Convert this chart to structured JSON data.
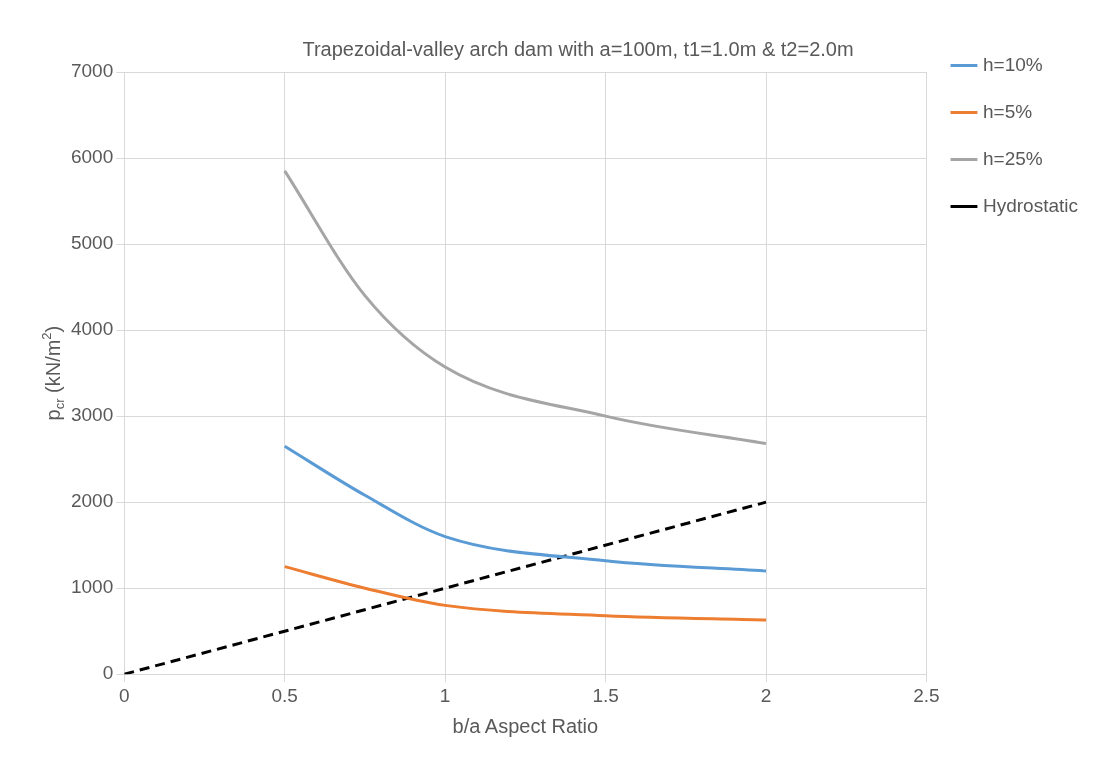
{
  "chart_data": {
    "type": "line",
    "title": "Trapezoidal-valley arch dam with a=100m, t1=1.0m & t2=2.0m",
    "xlabel": "b/a Aspect Ratio",
    "ylabel": "p$_{cr}$ (kN/m$^{2}$)",
    "xlim": [
      0,
      2.5
    ],
    "xticks": [
      0,
      0.5,
      1,
      1.5,
      2,
      2.5
    ],
    "ylim": [
      0,
      7000
    ],
    "yticks": [
      0,
      1000,
      2000,
      3000,
      4000,
      5000,
      6000,
      7000
    ],
    "grid": true,
    "legend": "right",
    "marker": "none",
    "series": [
      {
        "name": "h=10%",
        "color": "#5b9bd5",
        "x": [
          0.5,
          0.75,
          1,
          1.5,
          2
        ],
        "values": [
          2650,
          2080,
          1600,
          1320,
          1200
        ],
        "line_style": "solid"
      },
      {
        "name": "h=5%",
        "color": "#ed7d31",
        "x": [
          0.5,
          0.75,
          1,
          1.5,
          2
        ],
        "values": [
          1250,
          1000,
          800,
          680,
          630
        ],
        "line_style": "solid"
      },
      {
        "name": "h=25%",
        "color": "#a5a5a5",
        "x": [
          0.5,
          0.75,
          1,
          1.5,
          2
        ],
        "values": [
          5850,
          4400,
          3570,
          3000,
          2680
        ],
        "line_style": "solid"
      },
      {
        "name": "Hydrostatic",
        "color": "#000000",
        "x": [
          0,
          2
        ],
        "values": [
          0,
          2000
        ],
        "line_style": "dashed"
      }
    ]
  }
}
